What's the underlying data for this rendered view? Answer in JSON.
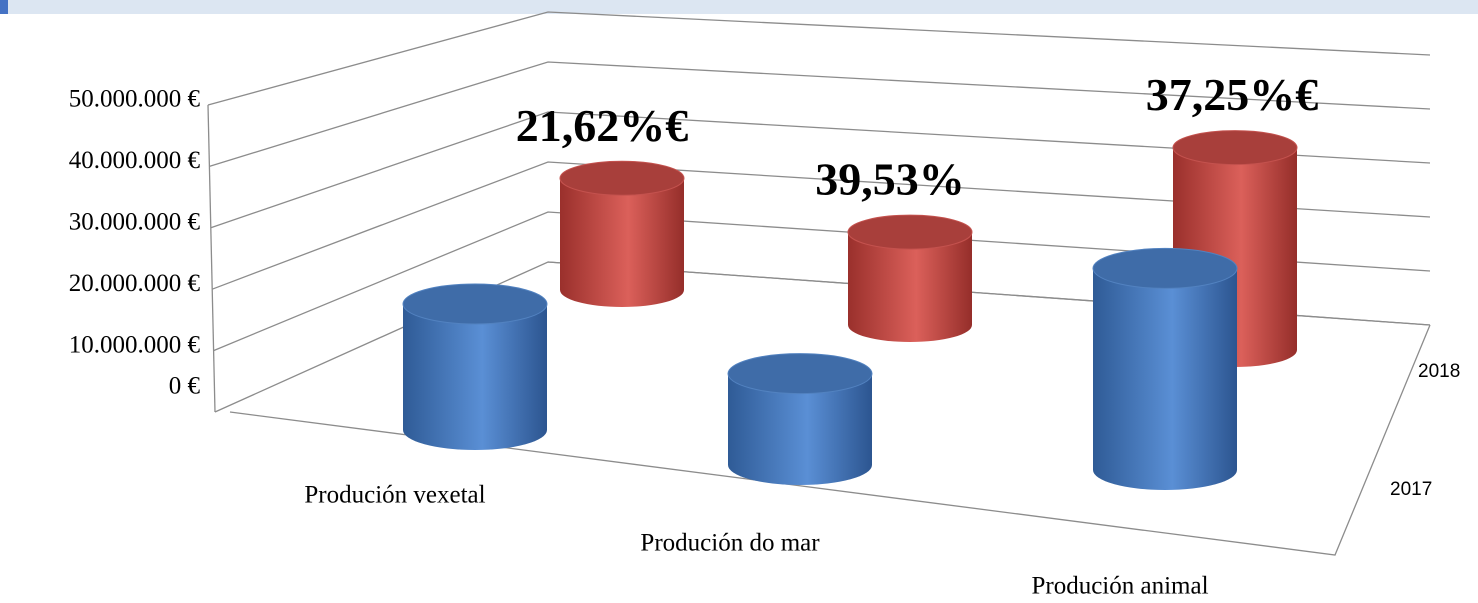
{
  "chart_data": {
    "type": "bar3d",
    "categories": [
      "Produción vexetal",
      "Produción do mar",
      "Produción animal"
    ],
    "series": [
      {
        "name": "2017",
        "color": "#4f81bd",
        "values": [
          20000000,
          14500000,
          32000000
        ]
      },
      {
        "name": "2018",
        "color": "#c0504d",
        "values": [
          24300000,
          20200000,
          44000000
        ]
      }
    ],
    "annotations": [
      "21,62%€",
      "39,53%",
      "37,25%€"
    ],
    "ylim": [
      0,
      50000000
    ],
    "yticks": [
      {
        "value": 0,
        "label": "0 €"
      },
      {
        "value": 10000000,
        "label": "10.000.000 €"
      },
      {
        "value": 20000000,
        "label": "20.000.000 €"
      },
      {
        "value": 30000000,
        "label": "30.000.000 €"
      },
      {
        "value": 40000000,
        "label": "40.000.000 €"
      },
      {
        "value": 50000000,
        "label": "50.000.000 €"
      }
    ],
    "grid": true
  }
}
